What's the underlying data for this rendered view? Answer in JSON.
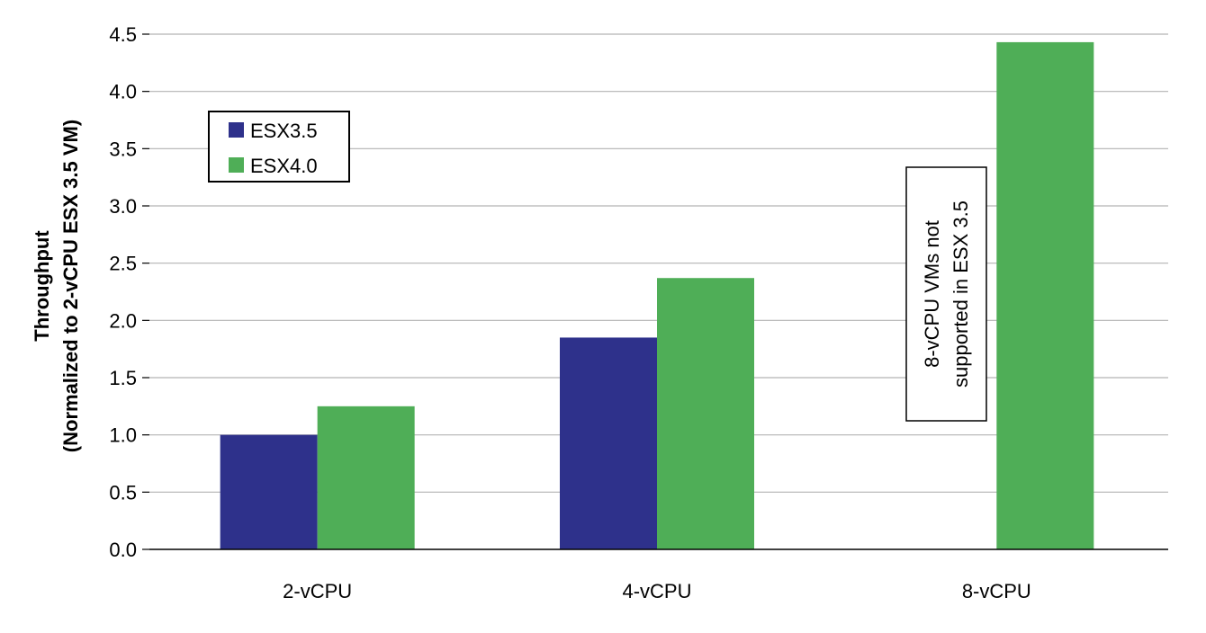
{
  "chart_data": {
    "type": "bar",
    "categories": [
      "2-vCPU",
      "4-vCPU",
      "8-vCPU"
    ],
    "series": [
      {
        "name": "ESX3.5",
        "values": [
          1.0,
          1.85,
          null
        ],
        "color": "#2e318b"
      },
      {
        "name": "ESX4.0",
        "values": [
          1.25,
          2.37,
          4.43
        ],
        "color": "#4fae57"
      }
    ],
    "ylabel_line1": "Throughput",
    "ylabel_line2": "(Normalized to 2-vCPU ESX 3.5 VM)",
    "ylim": [
      0,
      4.5
    ],
    "yticks": [
      "0.0",
      "0.5",
      "1.0",
      "1.5",
      "2.0",
      "2.5",
      "3.0",
      "3.5",
      "4.0",
      "4.5"
    ],
    "grid": true,
    "legend_position": "top-left",
    "annotation": {
      "category": "8-vCPU",
      "line1": "8-vCPU VMs not",
      "line2": "supported in ESX 3.5"
    }
  }
}
